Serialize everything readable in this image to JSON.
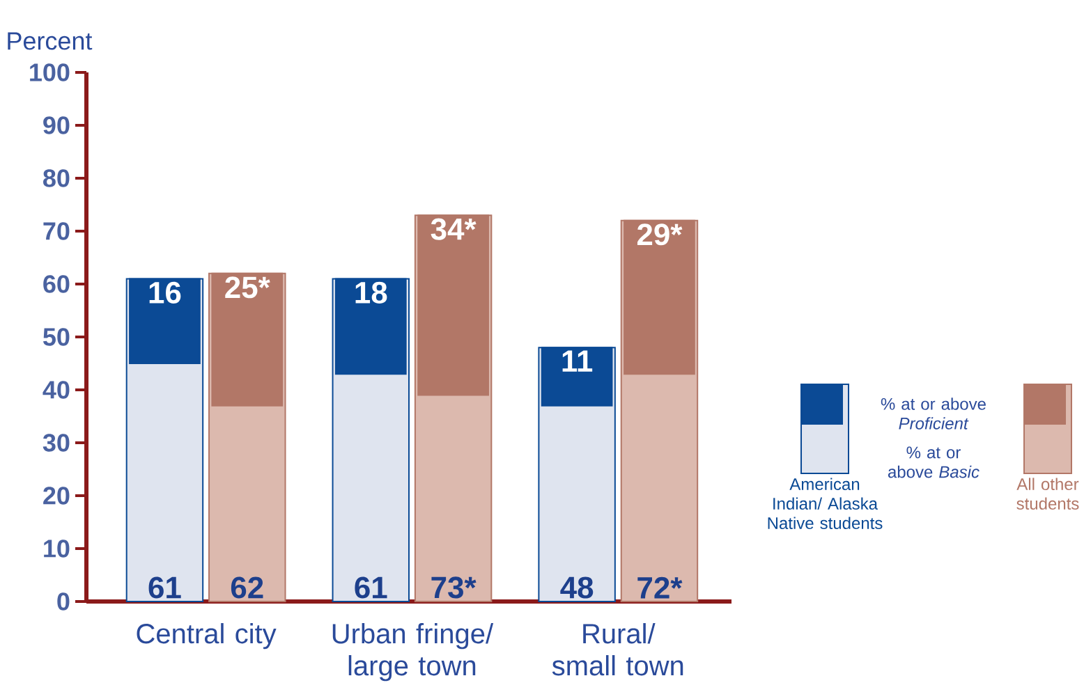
{
  "chart_data": {
    "type": "bar",
    "ylabel": "Percent",
    "categories": [
      "Central city",
      "Urban fringe/ large town",
      "Rural/ small town"
    ],
    "series": [
      {
        "color": "#dfe4ef",
        "values": [
          61,
          61,
          48
        ],
        "value_labels": [
          "61",
          "61",
          "48"
        ]
      },
      {
        "name": "American Indian/ Alaska Native students",
        "color": "#0b4a95",
        "base": [
          45,
          43,
          37
        ],
        "values": [
          16,
          18,
          11
        ],
        "value_labels": [
          "16",
          "18",
          "11"
        ]
      },
      {
        "color": "#dcb9ae",
        "values": [
          62,
          73,
          72
        ],
        "value_labels": [
          "62",
          "73*",
          "72*"
        ]
      },
      {
        "name": "All other students",
        "color": "#b27767",
        "base": [
          37,
          39,
          43
        ],
        "values": [
          25,
          34,
          29
        ],
        "value_labels": [
          "25*",
          "34*",
          "29*"
        ]
      }
    ],
    "ylim": [
      0,
      100
    ],
    "yticks": [
      0,
      10,
      20,
      30,
      40,
      50,
      60,
      70,
      80,
      90,
      100
    ],
    "legend": "right",
    "annotations": [
      "% at or above *Proficient*",
      "% at or above *Basic*"
    ]
  }
}
